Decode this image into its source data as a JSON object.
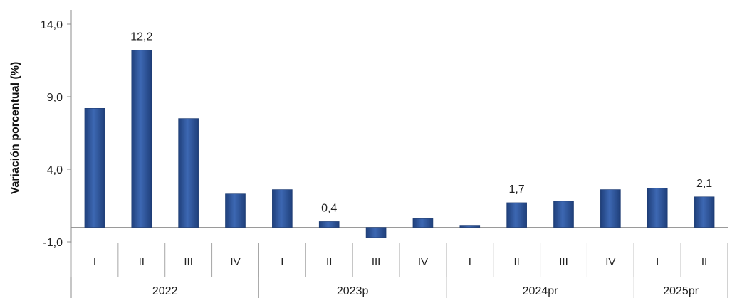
{
  "chart_data": {
    "type": "bar",
    "title": "",
    "xlabel": "",
    "ylabel": "Variación porcentual (%)",
    "ylim": [
      -1.0,
      14.0
    ],
    "yticks": [
      "14,0",
      "9,0",
      "4,0",
      "-1,0"
    ],
    "ytick_values": [
      14.0,
      9.0,
      4.0,
      -1.0
    ],
    "grid": false,
    "bar_color": "#2f5597",
    "groups": [
      {
        "label": "2022",
        "categories": [
          "I",
          "II",
          "III",
          "IV"
        ]
      },
      {
        "label": "2023p",
        "categories": [
          "I",
          "II",
          "III",
          "IV"
        ]
      },
      {
        "label": "2024pr",
        "categories": [
          "I",
          "II",
          "III",
          "IV"
        ]
      },
      {
        "label": "2025pr",
        "categories": [
          "I",
          "II"
        ]
      }
    ],
    "categories": [
      "I",
      "II",
      "III",
      "IV",
      "I",
      "II",
      "III",
      "IV",
      "I",
      "II",
      "III",
      "IV",
      "I",
      "II"
    ],
    "values": [
      8.2,
      12.2,
      7.5,
      2.3,
      2.6,
      0.4,
      -0.7,
      0.6,
      0.1,
      1.7,
      1.8,
      2.6,
      2.7,
      2.1
    ],
    "data_labels": [
      {
        "index": 1,
        "text": "12,2"
      },
      {
        "index": 5,
        "text": "0,4"
      },
      {
        "index": 9,
        "text": "1,7"
      },
      {
        "index": 13,
        "text": "2,1"
      }
    ]
  }
}
